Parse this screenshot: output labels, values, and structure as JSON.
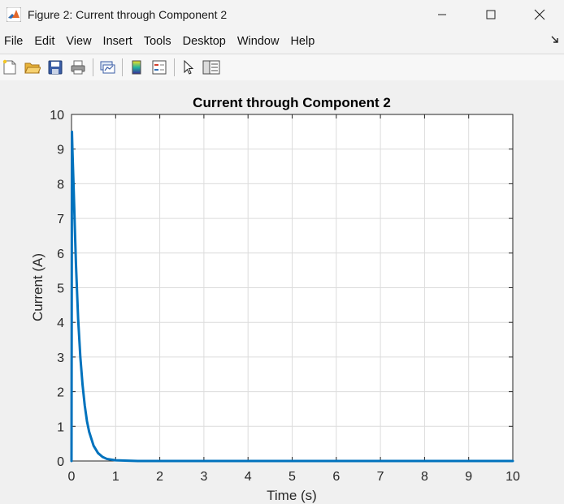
{
  "window": {
    "title": "Figure 2: Current through Component 2",
    "controls": [
      "minimize",
      "maximize",
      "close"
    ]
  },
  "menu": {
    "items": [
      "File",
      "Edit",
      "View",
      "Insert",
      "Tools",
      "Desktop",
      "Window",
      "Help"
    ]
  },
  "toolbar": {
    "icons": [
      "new-figure-icon",
      "open-file-icon",
      "save-icon",
      "print-icon",
      "link-plot-icon",
      "colorbar-icon",
      "legend-icon",
      "edit-plot-arrow-icon",
      "property-inspector-icon"
    ]
  },
  "chart_data": {
    "type": "line",
    "title": "Current through Component 2",
    "xlabel": "Time (s)",
    "ylabel": "Current (A)",
    "xlim": [
      0,
      10
    ],
    "ylim": [
      0,
      10
    ],
    "xticks": [
      0,
      1,
      2,
      3,
      4,
      5,
      6,
      7,
      8,
      9,
      10
    ],
    "yticks": [
      0,
      1,
      2,
      3,
      4,
      5,
      6,
      7,
      8,
      9,
      10
    ],
    "grid": true,
    "line_color": "#0072BD",
    "series": [
      {
        "x": [
          0,
          0.01,
          0.02,
          0.05,
          0.1,
          0.15,
          0.2,
          0.25,
          0.3,
          0.35,
          0.4,
          0.5,
          0.6,
          0.7,
          0.8,
          1.0,
          1.5,
          2,
          3,
          4,
          5,
          6,
          7,
          8,
          9,
          10
        ],
        "y": [
          0,
          9.5,
          9.0,
          7.8,
          5.7,
          4.1,
          3.0,
          2.2,
          1.6,
          1.15,
          0.84,
          0.44,
          0.23,
          0.12,
          0.06,
          0.02,
          0.0,
          0,
          0,
          0,
          0,
          0,
          0,
          0,
          0,
          0
        ]
      }
    ]
  }
}
